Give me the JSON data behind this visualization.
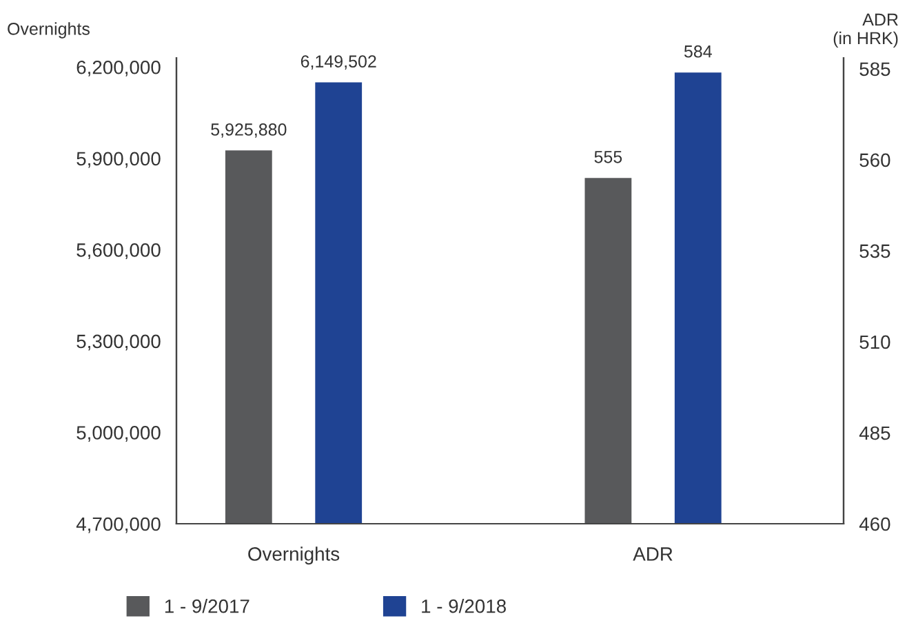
{
  "chart_data": {
    "type": "bar",
    "categories": [
      "Overnights",
      "ADR"
    ],
    "ylabel": "Overnights",
    "y2label": "ADR\n(in HRK)",
    "series": [
      {
        "name": "1 - 9/2017",
        "color": "#58595b",
        "axis": "y",
        "values": [
          5925880,
          null
        ],
        "value_labels": [
          "5,925,880",
          null
        ]
      },
      {
        "name": "1 - 9/2018",
        "color": "#1f4393",
        "axis": "y",
        "values": [
          6149502,
          null
        ],
        "value_labels": [
          "6,149,502",
          null
        ]
      },
      {
        "color": "#58595b",
        "axis": "y2",
        "values": [
          null,
          555
        ],
        "value_labels": [
          null,
          "555"
        ]
      },
      {
        "color": "#1f4393",
        "axis": "y2",
        "values": [
          null,
          584
        ],
        "value_labels": [
          null,
          "584"
        ]
      }
    ],
    "ylim": [
      4700000,
      6230000
    ],
    "yticks": [
      {
        "value": 4700000,
        "label": "4,700,000"
      },
      {
        "value": 5000000,
        "label": "5,000,000"
      },
      {
        "value": 5300000,
        "label": "5,300,000"
      },
      {
        "value": 5600000,
        "label": "5,600,000"
      },
      {
        "value": 5900000,
        "label": "5,900,000"
      },
      {
        "value": 6200000,
        "label": "6,200,000"
      }
    ],
    "y2lim": [
      460,
      588
    ],
    "y2ticks": [
      460,
      485,
      510,
      535,
      560,
      585
    ],
    "grid": false,
    "legend": "bottom left"
  }
}
